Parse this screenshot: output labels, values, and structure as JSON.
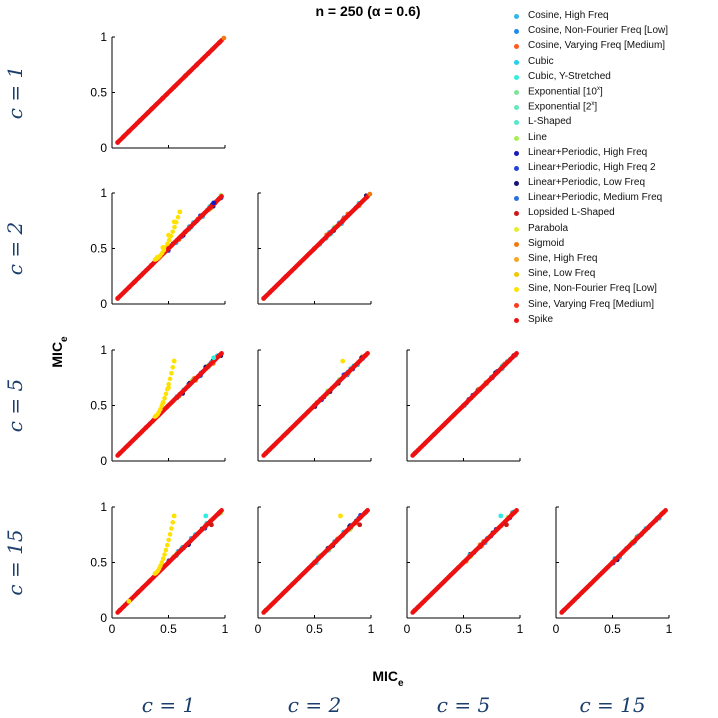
{
  "title": "n = 250  (α = 0.6)",
  "xlabel": "MIC",
  "xlabel_sub": "e",
  "ylabel": "MIC",
  "ylabel_sub": "e",
  "row_labels": [
    "c = 1",
    "c = 2",
    "c = 5",
    "c = 15"
  ],
  "col_labels": [
    "c = 1",
    "c = 2",
    "c = 5",
    "c = 15"
  ],
  "legend": [
    {
      "label": "Cosine, High Freq",
      "color": "#33b5ef"
    },
    {
      "label": "Cosine, Non-Fourier Freq [Low]",
      "color": "#1f8ae6"
    },
    {
      "label": "Cosine, Varying Freq [Medium]",
      "color": "#ff5a1f"
    },
    {
      "label": "Cubic",
      "color": "#22cfe8"
    },
    {
      "label": "Cubic, Y-Stretched",
      "color": "#33ece0"
    },
    {
      "label": "Exponential [10^x]",
      "color": "#7fe39a"
    },
    {
      "label": "Exponential [2^x]",
      "color": "#66e8b8"
    },
    {
      "label": "L-Shaped",
      "color": "#55e6cc"
    },
    {
      "label": "Line",
      "color": "#aaee55"
    },
    {
      "label": "Linear+Periodic, High Freq",
      "color": "#1a1ab8"
    },
    {
      "label": "Linear+Periodic, High Freq 2",
      "color": "#1e44d8"
    },
    {
      "label": "Linear+Periodic, Low Freq",
      "color": "#141473"
    },
    {
      "label": "Linear+Periodic, Medium Freq",
      "color": "#2b6fe0"
    },
    {
      "label": "Lopsided L-Shaped",
      "color": "#cc1a1a"
    },
    {
      "label": "Parabola",
      "color": "#e6ee33"
    },
    {
      "label": "Sigmoid",
      "color": "#f07a10"
    },
    {
      "label": "Sine, High Freq",
      "color": "#f5a623"
    },
    {
      "label": "Sine, Low Freq",
      "color": "#f0c800"
    },
    {
      "label": "Sine, Non-Fourier Freq [Low]",
      "color": "#ffe100"
    },
    {
      "label": "Sine, Varying Freq [Medium]",
      "color": "#ff3a1a"
    },
    {
      "label": "Spike",
      "color": "#ee1111"
    }
  ],
  "chart_data": {
    "type": "scatter",
    "title": "n = 250  (α = 0.6)",
    "xlabel": "MIC_e",
    "ylabel": "MIC_e",
    "xlim": [
      0,
      1
    ],
    "ylim": [
      0,
      1
    ],
    "xticks": [
      "0",
      "0.5",
      "1"
    ],
    "yticks": [
      "0",
      "0.5",
      "1"
    ],
    "grid": false,
    "legend_position": "right",
    "panels": [
      {
        "row": "c = 1",
        "col": "c = 1",
        "description": "all series on diagonal",
        "points": [
          {
            "series": "Spike",
            "x": 0.05,
            "y": 0.05
          },
          {
            "series": "Spike",
            "x": 0.15,
            "y": 0.15
          },
          {
            "series": "Spike",
            "x": 0.25,
            "y": 0.25
          },
          {
            "series": "Spike",
            "x": 0.35,
            "y": 0.35
          },
          {
            "series": "Spike",
            "x": 0.45,
            "y": 0.45
          },
          {
            "series": "Spike",
            "x": 0.55,
            "y": 0.55
          },
          {
            "series": "Spike",
            "x": 0.65,
            "y": 0.65
          },
          {
            "series": "Spike",
            "x": 0.75,
            "y": 0.75
          },
          {
            "series": "Spike",
            "x": 0.85,
            "y": 0.85
          },
          {
            "series": "Spike",
            "x": 0.95,
            "y": 0.95
          },
          {
            "series": "Sigmoid",
            "x": 0.99,
            "y": 0.99
          }
        ]
      },
      {
        "row": "c = 2",
        "col": "c = 1",
        "points": [
          {
            "series": "Spike",
            "x": 0.05,
            "y": 0.05
          },
          {
            "series": "Spike",
            "x": 0.2,
            "y": 0.2
          },
          {
            "series": "Spike",
            "x": 0.35,
            "y": 0.35
          },
          {
            "series": "Spike",
            "x": 0.5,
            "y": 0.5
          },
          {
            "series": "Spike",
            "x": 0.65,
            "y": 0.65
          },
          {
            "series": "Spike",
            "x": 0.8,
            "y": 0.8
          },
          {
            "series": "Spike",
            "x": 0.95,
            "y": 0.95
          },
          {
            "series": "Linear+Periodic, High Freq",
            "x": 0.9,
            "y": 0.91
          },
          {
            "series": "Sine, Non-Fourier Freq [Low]",
            "x": 0.4,
            "y": 0.42
          },
          {
            "series": "Sine, Non-Fourier Freq [Low]",
            "x": 0.45,
            "y": 0.51
          },
          {
            "series": "Sine, Non-Fourier Freq [Low]",
            "x": 0.5,
            "y": 0.62
          },
          {
            "series": "Sine, Non-Fourier Freq [Low]",
            "x": 0.55,
            "y": 0.74
          },
          {
            "series": "Sine, Non-Fourier Freq [Low]",
            "x": 0.6,
            "y": 0.83
          }
        ]
      },
      {
        "row": "c = 2",
        "col": "c = 2",
        "points": [
          {
            "series": "Spike",
            "x": 0.05,
            "y": 0.05
          },
          {
            "series": "Spike",
            "x": 0.25,
            "y": 0.25
          },
          {
            "series": "Spike",
            "x": 0.5,
            "y": 0.5
          },
          {
            "series": "Spike",
            "x": 0.75,
            "y": 0.75
          },
          {
            "series": "Sigmoid",
            "x": 0.99,
            "y": 0.99
          }
        ]
      },
      {
        "row": "c = 5",
        "col": "c = 1",
        "points": [
          {
            "series": "Spike",
            "x": 0.07,
            "y": 0.07
          },
          {
            "series": "Spike",
            "x": 0.3,
            "y": 0.3
          },
          {
            "series": "Spike",
            "x": 0.6,
            "y": 0.6
          },
          {
            "series": "Spike",
            "x": 0.95,
            "y": 0.95
          },
          {
            "series": "Cubic, Y-Stretched",
            "x": 0.9,
            "y": 0.93
          },
          {
            "series": "Sine, Non-Fourier Freq [Low]",
            "x": 0.45,
            "y": 0.52
          },
          {
            "series": "Sine, Non-Fourier Freq [Low]",
            "x": 0.5,
            "y": 0.66
          },
          {
            "series": "Sine, Non-Fourier Freq [Low]",
            "x": 0.55,
            "y": 0.9
          }
        ]
      },
      {
        "row": "c = 5",
        "col": "c = 2",
        "points": [
          {
            "series": "Spike",
            "x": 0.07,
            "y": 0.07
          },
          {
            "series": "Spike",
            "x": 0.5,
            "y": 0.5
          },
          {
            "series": "Spike",
            "x": 0.95,
            "y": 0.95
          },
          {
            "series": "Sine, Non-Fourier Freq [Low]",
            "x": 0.75,
            "y": 0.9
          }
        ]
      },
      {
        "row": "c = 5",
        "col": "c = 5",
        "points": [
          {
            "series": "Spike",
            "x": 0.07,
            "y": 0.07
          },
          {
            "series": "Spike",
            "x": 0.5,
            "y": 0.5
          },
          {
            "series": "Spike",
            "x": 0.95,
            "y": 0.95
          }
        ]
      },
      {
        "row": "c = 15",
        "col": "c = 1",
        "points": [
          {
            "series": "Spike",
            "x": 0.07,
            "y": 0.07
          },
          {
            "series": "Spike",
            "x": 0.5,
            "y": 0.5
          },
          {
            "series": "Spike",
            "x": 0.95,
            "y": 0.95
          },
          {
            "series": "Cubic, Y-Stretched",
            "x": 0.83,
            "y": 0.92
          },
          {
            "series": "Lopsided L-Shaped",
            "x": 0.88,
            "y": 0.84
          },
          {
            "series": "Sine, Non-Fourier Freq [Low]",
            "x": 0.55,
            "y": 0.92
          },
          {
            "series": "Sine, Non-Fourier Freq [Low]",
            "x": 0.15,
            "y": 0.15
          }
        ]
      },
      {
        "row": "c = 15",
        "col": "c = 2",
        "points": [
          {
            "series": "Spike",
            "x": 0.07,
            "y": 0.07
          },
          {
            "series": "Spike",
            "x": 0.5,
            "y": 0.5
          },
          {
            "series": "Spike",
            "x": 0.95,
            "y": 0.95
          },
          {
            "series": "Sine, Non-Fourier Freq [Low]",
            "x": 0.73,
            "y": 0.92
          },
          {
            "series": "Lopsided L-Shaped",
            "x": 0.9,
            "y": 0.84
          }
        ]
      },
      {
        "row": "c = 15",
        "col": "c = 5",
        "points": [
          {
            "series": "Spike",
            "x": 0.07,
            "y": 0.07
          },
          {
            "series": "Spike",
            "x": 0.5,
            "y": 0.5
          },
          {
            "series": "Spike",
            "x": 0.95,
            "y": 0.95
          },
          {
            "series": "Cubic, Y-Stretched",
            "x": 0.83,
            "y": 0.92
          },
          {
            "series": "Lopsided L-Shaped",
            "x": 0.88,
            "y": 0.84
          }
        ]
      },
      {
        "row": "c = 15",
        "col": "c = 15",
        "points": [
          {
            "series": "Spike",
            "x": 0.07,
            "y": 0.07
          },
          {
            "series": "Spike",
            "x": 0.5,
            "y": 0.5
          },
          {
            "series": "Spike",
            "x": 0.95,
            "y": 0.95
          }
        ]
      }
    ]
  }
}
